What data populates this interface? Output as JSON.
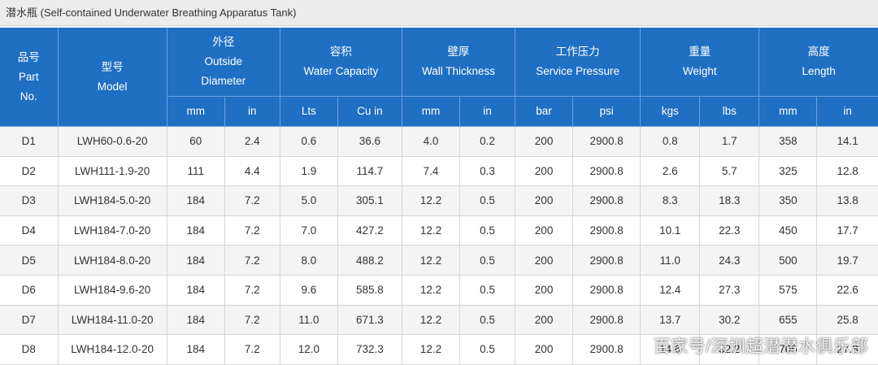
{
  "title": "潜水瓶 (Self-contained Underwater Breathing Apparatus Tank)",
  "headers": {
    "part_no": {
      "zh": "品号",
      "en1": "Part",
      "en2": "No."
    },
    "model": {
      "zh": "型号",
      "en1": "Model"
    },
    "outside_diameter": {
      "zh": "外径",
      "en1": "Outside",
      "en2": "Diameter"
    },
    "water_capacity": {
      "zh": "容积",
      "en1": "Water Capacity"
    },
    "wall_thickness": {
      "zh": "壁厚",
      "en1": "Wall Thickness"
    },
    "service_pressure": {
      "zh": "工作压力",
      "en1": "Service Pressure"
    },
    "weight": {
      "zh": "重量",
      "en1": "Weight"
    },
    "length": {
      "zh": "高度",
      "en1": "Length"
    }
  },
  "units": [
    "mm",
    "in",
    "Lts",
    "Cu in",
    "mm",
    "in",
    "bar",
    "psi",
    "kgs",
    "lbs",
    "mm",
    "in"
  ],
  "rows": [
    [
      "D1",
      "LWH60-0.6-20",
      "60",
      "2.4",
      "0.6",
      "36.6",
      "4.0",
      "0.2",
      "200",
      "2900.8",
      "0.8",
      "1.7",
      "358",
      "14.1"
    ],
    [
      "D2",
      "LWH111-1.9-20",
      "111",
      "4.4",
      "1.9",
      "114.7",
      "7.4",
      "0.3",
      "200",
      "2900.8",
      "2.6",
      "5.7",
      "325",
      "12.8"
    ],
    [
      "D3",
      "LWH184-5.0-20",
      "184",
      "7.2",
      "5.0",
      "305.1",
      "12.2",
      "0.5",
      "200",
      "2900.8",
      "8.3",
      "18.3",
      "350",
      "13.8"
    ],
    [
      "D4",
      "LWH184-7.0-20",
      "184",
      "7.2",
      "7.0",
      "427.2",
      "12.2",
      "0.5",
      "200",
      "2900.8",
      "10.1",
      "22.3",
      "450",
      "17.7"
    ],
    [
      "D5",
      "LWH184-8.0-20",
      "184",
      "7.2",
      "8.0",
      "488.2",
      "12.2",
      "0.5",
      "200",
      "2900.8",
      "11.0",
      "24.3",
      "500",
      "19.7"
    ],
    [
      "D6",
      "LWH184-9.6-20",
      "184",
      "7.2",
      "9.6",
      "585.8",
      "12.2",
      "0.5",
      "200",
      "2900.8",
      "12.4",
      "27.3",
      "575",
      "22.6"
    ],
    [
      "D7",
      "LWH184-11.0-20",
      "184",
      "7.2",
      "11.0",
      "671.3",
      "12.2",
      "0.5",
      "200",
      "2900.8",
      "13.7",
      "30.2",
      "655",
      "25.8"
    ],
    [
      "D8",
      "LWH184-12.0-20",
      "184",
      "7.2",
      "12.0",
      "732.3",
      "12.2",
      "0.5",
      "200",
      "2900.8",
      "14.6",
      "32.2",
      "705",
      "27.8"
    ]
  ],
  "watermark": "百家号/深圳超潜潜水俱乐部",
  "colors": {
    "header_bg": "#1f6fc3",
    "header_text": "#ffffff",
    "row_alt": "#f4f4f4",
    "text": "#333333"
  }
}
